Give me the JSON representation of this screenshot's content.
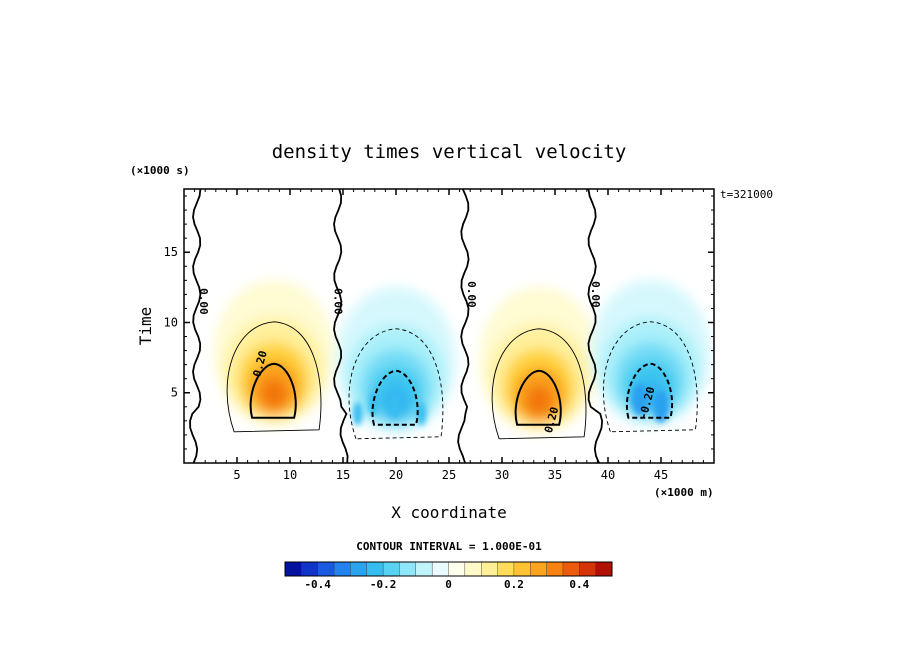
{
  "chart_data": {
    "type": "heatmap",
    "title": "density times vertical velocity",
    "xlabel": "X coordinate",
    "ylabel": "Time",
    "x_unit": "(×1000 m)",
    "y_unit": "(×1000 s)",
    "time_stamp": "t=321000",
    "xlim": [
      0,
      50
    ],
    "ylim": [
      0,
      19.5
    ],
    "x_ticks": [
      5,
      10,
      15,
      20,
      25,
      30,
      35,
      40,
      45
    ],
    "y_ticks": [
      5,
      10,
      15
    ],
    "contour_interval_text": "CONTOUR INTERVAL = 1.000E-01",
    "contour_labels": [
      {
        "text": "0.00",
        "x": 1.5,
        "y": 11.5
      },
      {
        "text": "0.00",
        "x": 14.2,
        "y": 11.5
      },
      {
        "text": "0.00",
        "x": 26.8,
        "y": 12
      },
      {
        "text": "0.00",
        "x": 38.5,
        "y": 12
      },
      {
        "text": "0.20",
        "x": 7.5,
        "y": 7.0
      },
      {
        "text": "0.20",
        "x": 35.0,
        "y": 3.0
      },
      {
        "text": "-0.20",
        "x": 44.0,
        "y": 4.2
      }
    ],
    "features": [
      {
        "sign": "positive",
        "x_center": 8.5,
        "y_center": 4.5,
        "peak": 0.35
      },
      {
        "sign": "negative",
        "x_center": 20.0,
        "y_center": 4.0,
        "peak": -0.25
      },
      {
        "sign": "positive",
        "x_center": 33.5,
        "y_center": 4.0,
        "peak": 0.35
      },
      {
        "sign": "negative",
        "x_center": 44.0,
        "y_center": 4.5,
        "peak": -0.25
      }
    ],
    "colorbar": {
      "min": -0.5,
      "max": 0.5,
      "step": 0.05,
      "tick_labels": [
        "-0.4",
        "-0.2",
        "0",
        "0.2",
        "0.4"
      ],
      "tick_values": [
        -0.4,
        -0.2,
        0,
        0.2,
        0.4
      ]
    }
  }
}
